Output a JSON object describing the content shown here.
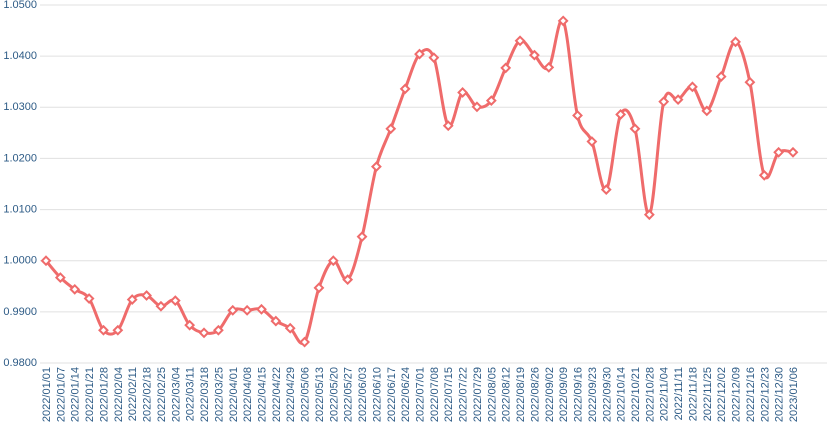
{
  "chart_data": {
    "type": "line",
    "categories": [
      "2022/01/01",
      "2022/01/07",
      "2022/01/14",
      "2022/01/21",
      "2022/01/28",
      "2022/02/04",
      "2022/02/11",
      "2022/02/18",
      "2022/02/25",
      "2022/03/04",
      "2022/03/11",
      "2022/03/18",
      "2022/03/25",
      "2022/04/01",
      "2022/04/08",
      "2022/04/15",
      "2022/04/22",
      "2022/04/29",
      "2022/05/06",
      "2022/05/13",
      "2022/05/20",
      "2022/05/27",
      "2022/06/03",
      "2022/06/10",
      "2022/06/17",
      "2022/06/24",
      "2022/07/01",
      "2022/07/08",
      "2022/07/15",
      "2022/07/22",
      "2022/07/29",
      "2022/08/05",
      "2022/08/12",
      "2022/08/19",
      "2022/08/26",
      "2022/09/02",
      "2022/09/09",
      "2022/09/16",
      "2022/09/23",
      "2022/09/30",
      "2022/10/14",
      "2022/10/21",
      "2022/10/28",
      "2022/11/04",
      "2022/11/11",
      "2022/11/18",
      "2022/11/25",
      "2022/12/02",
      "2022/12/09",
      "2022/12/16",
      "2022/12/23",
      "2022/12/30",
      "2023/01/06"
    ],
    "values": [
      1.0,
      0.9967,
      0.9944,
      0.9926,
      0.9864,
      0.9864,
      0.9924,
      0.9932,
      0.9911,
      0.9922,
      0.9874,
      0.9859,
      0.9864,
      0.9903,
      0.9903,
      0.9905,
      0.9882,
      0.9868,
      0.9841,
      0.9947,
      1.0,
      0.9963,
      1.0047,
      1.0184,
      1.0258,
      1.0336,
      1.0404,
      1.0397,
      1.0264,
      1.0329,
      1.0301,
      1.0313,
      1.0377,
      1.043,
      1.0402,
      1.0378,
      1.0469,
      1.0284,
      1.0233,
      1.0139,
      1.0286,
      1.0258,
      1.009,
      1.0311,
      1.0315,
      1.034,
      1.0293,
      1.036,
      1.0428,
      1.0349,
      1.0167,
      1.0212,
      1.0212
    ],
    "color": "#ef6b6b",
    "ylim": [
      0.98,
      1.05
    ],
    "yticks": [
      {
        "value": 0.98,
        "label": "0.9800"
      },
      {
        "value": 0.99,
        "label": "0.9900"
      },
      {
        "value": 1.0,
        "label": "1.0000"
      },
      {
        "value": 1.01,
        "label": "1.0100"
      },
      {
        "value": 1.02,
        "label": "1.0200"
      },
      {
        "value": 1.03,
        "label": "1.0300"
      },
      {
        "value": 1.04,
        "label": "1.0400"
      },
      {
        "value": 1.05,
        "label": "1.0500"
      }
    ],
    "grid": true,
    "smooth": true
  }
}
